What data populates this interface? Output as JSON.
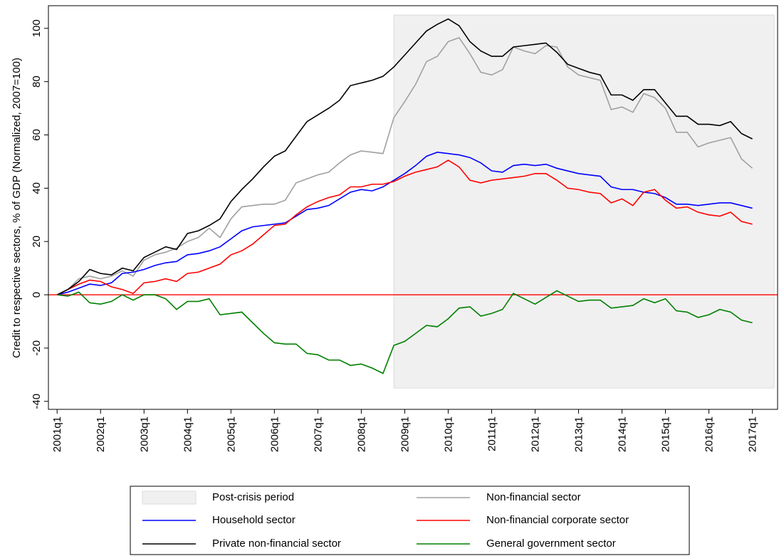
{
  "chart_data": {
    "type": "line",
    "y_label": "Credit to respective sectors, % of GDP (Normalized, 2007=100)",
    "x": [
      2001,
      2001.25,
      2001.5,
      2001.75,
      2002,
      2002.25,
      2002.5,
      2002.75,
      2003,
      2003.25,
      2003.5,
      2003.75,
      2004,
      2004.25,
      2004.5,
      2004.75,
      2005,
      2005.25,
      2005.5,
      2005.75,
      2006,
      2006.25,
      2006.5,
      2006.75,
      2007,
      2007.25,
      2007.5,
      2007.75,
      2008,
      2008.25,
      2008.5,
      2008.75,
      2009,
      2009.25,
      2009.5,
      2009.75,
      2010,
      2010.25,
      2010.5,
      2010.75,
      2011,
      2011.25,
      2011.5,
      2011.75,
      2012,
      2012.25,
      2012.5,
      2012.75,
      2013,
      2013.25,
      2013.5,
      2013.75,
      2014,
      2014.25,
      2014.5,
      2014.75,
      2015,
      2015.25,
      2015.5,
      2015.75,
      2016,
      2016.25,
      2016.5,
      2016.75,
      2017
    ],
    "xlim": [
      2000.8,
      2017.58
    ],
    "xticks": [
      {
        "value": 2001,
        "label": "2001q1"
      },
      {
        "value": 2002,
        "label": "2002q1"
      },
      {
        "value": 2003,
        "label": "2003q1"
      },
      {
        "value": 2004,
        "label": "2004q1"
      },
      {
        "value": 2005,
        "label": "2005q1"
      },
      {
        "value": 2006,
        "label": "2006q1"
      },
      {
        "value": 2007,
        "label": "2007q1"
      },
      {
        "value": 2008,
        "label": "2008q1"
      },
      {
        "value": 2009,
        "label": "2009q1"
      },
      {
        "value": 2010,
        "label": "2010q1"
      },
      {
        "value": 2011,
        "label": "2011q1"
      },
      {
        "value": 2012,
        "label": "2012q1"
      },
      {
        "value": 2013,
        "label": "2013q1"
      },
      {
        "value": 2014,
        "label": "2014q1"
      },
      {
        "value": 2015,
        "label": "2015q1"
      },
      {
        "value": 2016,
        "label": "2016q1"
      },
      {
        "value": 2017,
        "label": "2017q1"
      }
    ],
    "ylim": [
      -43,
      108.5
    ],
    "yticks": [
      -40,
      -20,
      0,
      20,
      40,
      60,
      80,
      100
    ],
    "hline": {
      "value": 0,
      "color": "#ff0000"
    },
    "shade": {
      "name": "Post-crisis period",
      "color": "#f0f0f0",
      "x": [
        2008.75,
        2017.5
      ],
      "y": [
        -35,
        105
      ]
    },
    "series": [
      {
        "name": "Non-financial sector",
        "color": "#a0a0a0",
        "values": [
          0,
          2,
          6,
          7,
          6,
          7,
          9,
          7,
          13,
          15,
          16,
          17.5,
          20,
          21.5,
          25,
          21.5,
          28.5,
          33,
          33.5,
          34,
          34,
          35.5,
          42,
          43.5,
          45,
          46,
          49.5,
          52.5,
          54,
          53.5,
          53,
          66.5,
          72.5,
          79,
          87.5,
          89.5,
          95,
          96.5,
          90.5,
          83.5,
          82.5,
          84.5,
          93,
          91.5,
          90.5,
          93.5,
          93,
          85.5,
          82.5,
          81.5,
          80.5,
          69.5,
          70.5,
          68.5,
          75.5,
          74,
          70,
          61,
          61,
          55.5,
          57,
          58,
          59,
          51,
          47.5
        ]
      },
      {
        "name": "Household sector",
        "color": "#0000ff",
        "values": [
          0,
          1,
          2.5,
          4,
          3.5,
          4.5,
          8,
          8.5,
          9.5,
          11,
          12,
          12.5,
          15,
          15.5,
          16.5,
          18,
          21,
          24,
          25.5,
          26,
          26.5,
          27,
          29.5,
          32,
          32.5,
          33.5,
          36,
          38.5,
          39.5,
          39,
          40.5,
          43,
          45.5,
          48.5,
          52,
          53.5,
          53,
          52.5,
          51.5,
          49.5,
          46.5,
          46,
          48.5,
          49,
          48.5,
          49,
          47.5,
          46.5,
          45.5,
          45,
          44.5,
          40.5,
          39.5,
          39.5,
          38.5,
          38,
          36.5,
          34,
          34,
          33.5,
          34,
          34.5,
          34.5,
          33.5,
          32.5
        ]
      },
      {
        "name": "Non-financial corporate sector",
        "color": "#ff0000",
        "values": [
          0,
          2,
          4,
          5.5,
          5,
          3,
          2,
          0.5,
          4.5,
          5,
          6,
          5,
          8,
          8.5,
          10,
          11.5,
          15,
          16.5,
          19,
          22.5,
          26,
          26.5,
          30,
          33,
          35,
          36.5,
          37.5,
          40.5,
          40.5,
          41.5,
          41.5,
          42.5,
          44.5,
          46,
          47,
          48,
          50.5,
          48,
          43,
          42,
          43,
          43.5,
          44,
          44.5,
          45.5,
          45.5,
          43,
          40,
          39.5,
          38.5,
          38,
          34.5,
          36,
          33.5,
          38.5,
          39.5,
          35.5,
          32.5,
          33,
          31,
          30,
          29.5,
          31,
          27.5,
          26.5
        ]
      },
      {
        "name": "Private non-financial sector",
        "color": "#000000",
        "values": [
          0,
          2,
          5,
          9.5,
          8,
          7.5,
          10,
          9,
          14,
          16,
          18,
          17,
          23,
          24,
          26,
          28.5,
          35,
          39.5,
          43.5,
          48,
          52,
          54,
          59.5,
          65,
          67.5,
          70,
          73,
          78.5,
          79.5,
          80.5,
          82,
          85.5,
          90,
          94.5,
          99,
          101.5,
          103.5,
          101,
          95,
          91.5,
          89.5,
          89.5,
          93,
          93.5,
          94,
          94.5,
          91,
          86.5,
          85,
          83.5,
          82.5,
          75,
          75,
          73,
          77,
          77,
          72,
          67,
          67,
          64,
          64,
          63.5,
          65,
          60.5,
          58.5
        ]
      },
      {
        "name": "General government sector",
        "color": "#008000",
        "values": [
          0,
          -0.5,
          1,
          -3,
          -3.5,
          -2.5,
          0,
          -2,
          0,
          0,
          -1.5,
          -5.5,
          -2.5,
          -2.5,
          -1.5,
          -7.5,
          -7,
          -6.5,
          -10.5,
          -14.5,
          -18,
          -18.5,
          -18.5,
          -22,
          -22.5,
          -24.5,
          -24.5,
          -26.5,
          -26,
          -27.5,
          -29.5,
          -19,
          -17.5,
          -14.5,
          -11.5,
          -12,
          -9,
          -5,
          -4.5,
          -8,
          -7,
          -5.5,
          0.5,
          -1.5,
          -3.5,
          -1,
          1.5,
          -0.5,
          -2.5,
          -2,
          -2,
          -5,
          -4.5,
          -4,
          -1.5,
          -3,
          -1.5,
          -6,
          -6.5,
          -8.5,
          -7.5,
          -5.5,
          -6.5,
          -9.5,
          -10.5
        ]
      }
    ]
  }
}
